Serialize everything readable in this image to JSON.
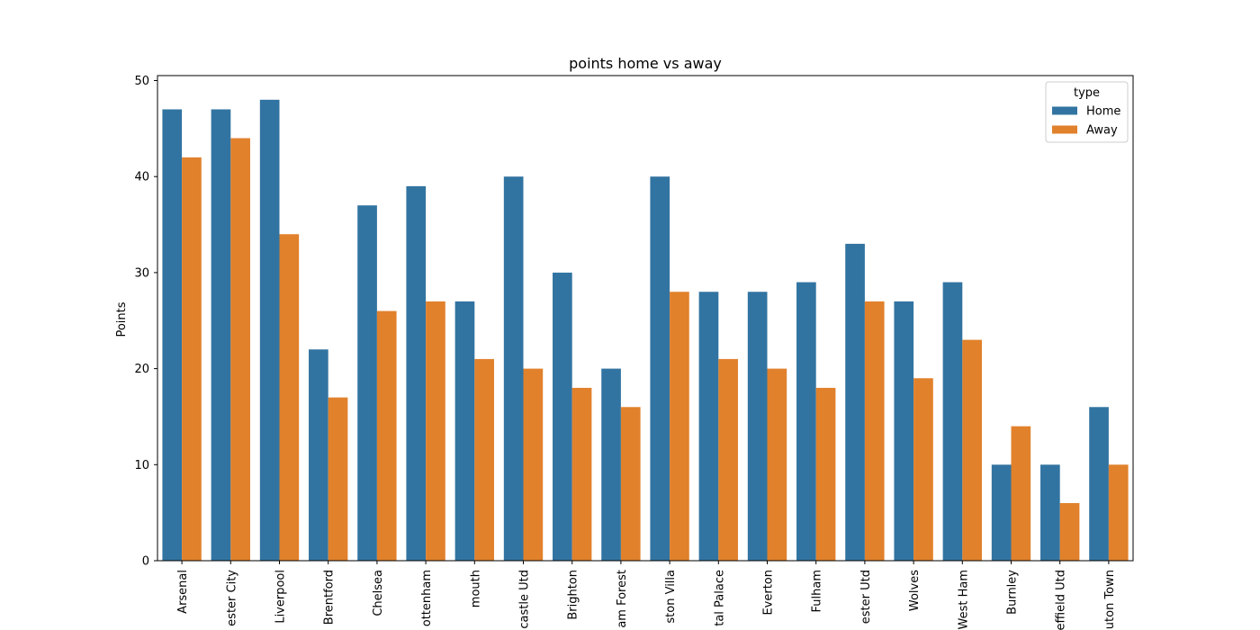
{
  "chart_data": {
    "type": "bar",
    "title": "points home vs away",
    "xlabel": "",
    "ylabel": "Points",
    "ylim": [
      0,
      50
    ],
    "yticks": [
      0,
      10,
      20,
      30,
      40,
      50
    ],
    "categories": [
      "Arsenal",
      "ester City",
      "Liverpool",
      "Brentford",
      "Chelsea",
      "ottenham",
      "mouth",
      "castle Utd",
      "Brighton",
      "am Forest",
      "ston Villa",
      "tal Palace",
      "Everton",
      "Fulham",
      "ester Utd",
      "Wolves",
      "West Ham",
      "Burnley",
      "effield Utd",
      "uton Town"
    ],
    "series": [
      {
        "name": "Home",
        "color": "#3274a1",
        "values": [
          47,
          47,
          48,
          22,
          37,
          39,
          27,
          40,
          30,
          20,
          40,
          28,
          28,
          29,
          33,
          27,
          29,
          10,
          10,
          16
        ]
      },
      {
        "name": "Away",
        "color": "#e1812c",
        "values": [
          42,
          44,
          34,
          17,
          26,
          27,
          21,
          20,
          18,
          16,
          28,
          21,
          20,
          18,
          27,
          19,
          23,
          14,
          6,
          10
        ]
      }
    ],
    "legend": {
      "title": "type",
      "placement": "top-right"
    },
    "grid": false
  }
}
